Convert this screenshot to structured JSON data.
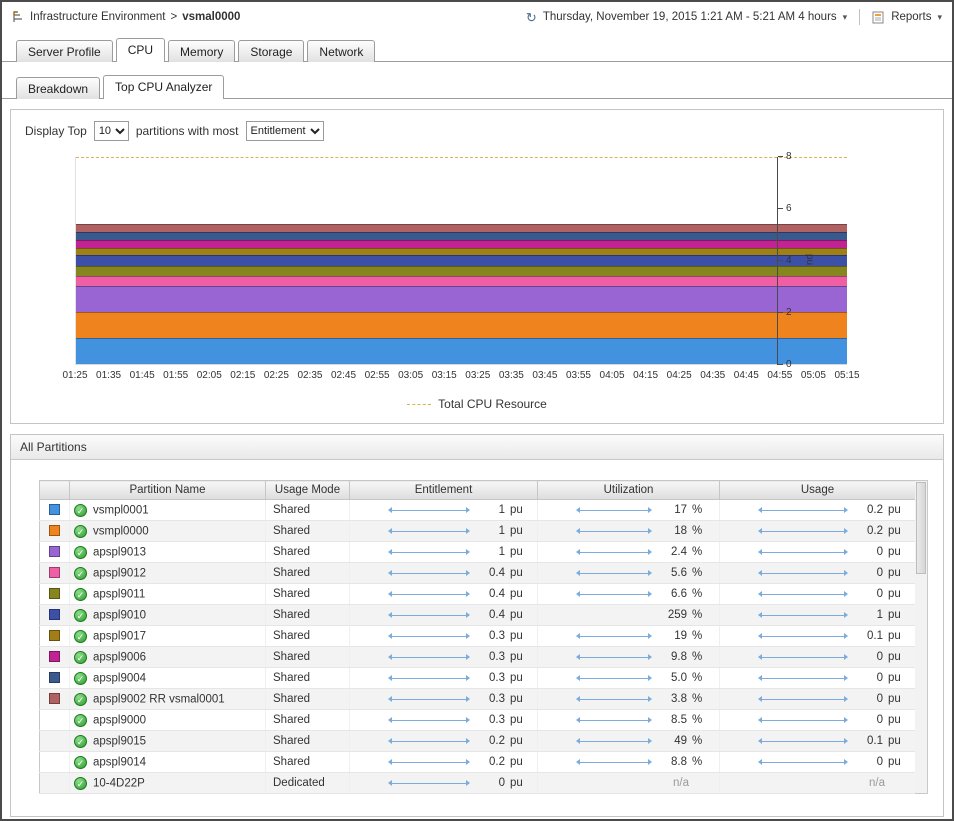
{
  "header": {
    "breadcrumb_root": "Infrastructure Environment",
    "breadcrumb_sep": ">",
    "breadcrumb_current": "vsmal0000",
    "time_range": "Thursday, November 19, 2015 1:21 AM - 5:21 AM 4 hours",
    "reports_label": "Reports"
  },
  "tabs": [
    {
      "label": "Server Profile",
      "active": false
    },
    {
      "label": "CPU",
      "active": true
    },
    {
      "label": "Memory",
      "active": false
    },
    {
      "label": "Storage",
      "active": false
    },
    {
      "label": "Network",
      "active": false
    }
  ],
  "subtabs": [
    {
      "label": "Breakdown",
      "active": false
    },
    {
      "label": "Top CPU Analyzer",
      "active": true
    }
  ],
  "controls": {
    "prefix": "Display Top",
    "top_count": "10",
    "middle": "partitions with most",
    "metric": "Entitlement"
  },
  "chart_data": {
    "type": "area",
    "stacked": true,
    "note": "each series is flat (constant) across the whole time range; values are CPU entitlement in processing units",
    "x": [
      "01:25",
      "01:35",
      "01:45",
      "01:55",
      "02:05",
      "02:15",
      "02:25",
      "02:35",
      "02:45",
      "02:55",
      "03:05",
      "03:15",
      "03:25",
      "03:35",
      "03:45",
      "03:55",
      "04:05",
      "04:15",
      "04:25",
      "04:35",
      "04:45",
      "04:55",
      "05:05",
      "05:15"
    ],
    "series": [
      {
        "name": "vsmpl0001",
        "color": "#4292e0",
        "value": 1
      },
      {
        "name": "vsmpl0000",
        "color": "#ef831d",
        "value": 1
      },
      {
        "name": "apspl9013",
        "color": "#9865d2",
        "value": 1
      },
      {
        "name": "apspl9012",
        "color": "#ee5fa4",
        "value": 0.4
      },
      {
        "name": "apspl9011",
        "color": "#86861e",
        "value": 0.4
      },
      {
        "name": "apspl9010",
        "color": "#3d50a8",
        "value": 0.4
      },
      {
        "name": "apspl9017",
        "color": "#a17f17",
        "value": 0.3
      },
      {
        "name": "apspl9006",
        "color": "#c22394",
        "value": 0.3
      },
      {
        "name": "apspl9004",
        "color": "#3a5a8e",
        "value": 0.3
      },
      {
        "name": "apspl9002 RR vsmal0001",
        "color": "#b06262",
        "value": 0.3
      }
    ],
    "ylabel": "pu",
    "ylim": [
      0,
      8
    ],
    "yticks": [
      0,
      2,
      4,
      6,
      8
    ],
    "grid": false,
    "reference_line": {
      "label": "Total CPU Resource",
      "value": 8,
      "color": "#d9b64a",
      "style": "dashed"
    },
    "legend": [
      {
        "label": "Total CPU Resource",
        "color": "#d9b64a"
      }
    ],
    "legend_position": "bottom-center"
  },
  "partitions": {
    "title": "All Partitions",
    "columns": {
      "name": "Partition Name",
      "mode": "Usage Mode",
      "entitlement": "Entitlement",
      "utilization": "Utilization",
      "usage": "Usage"
    },
    "rows": [
      {
        "swatch": "#4292e0",
        "status": "ok",
        "name": "vsmpl0001",
        "mode": "Shared",
        "entitlement": {
          "spark": true,
          "value": "1",
          "unit": "pu"
        },
        "utilization": {
          "spark": true,
          "value": "17",
          "unit": "%"
        },
        "usage": {
          "spark": true,
          "value": "0.2",
          "unit": "pu"
        }
      },
      {
        "swatch": "#ef831d",
        "status": "ok",
        "name": "vsmpl0000",
        "mode": "Shared",
        "entitlement": {
          "spark": true,
          "value": "1",
          "unit": "pu"
        },
        "utilization": {
          "spark": true,
          "value": "18",
          "unit": "%"
        },
        "usage": {
          "spark": true,
          "value": "0.2",
          "unit": "pu"
        }
      },
      {
        "swatch": "#9865d2",
        "status": "ok",
        "name": "apspl9013",
        "mode": "Shared",
        "entitlement": {
          "spark": true,
          "value": "1",
          "unit": "pu"
        },
        "utilization": {
          "spark": true,
          "value": "2.4",
          "unit": "%"
        },
        "usage": {
          "spark": true,
          "value": "0",
          "unit": "pu"
        }
      },
      {
        "swatch": "#ee5fa4",
        "status": "ok",
        "name": "apspl9012",
        "mode": "Shared",
        "entitlement": {
          "spark": true,
          "value": "0.4",
          "unit": "pu"
        },
        "utilization": {
          "spark": true,
          "value": "5.6",
          "unit": "%"
        },
        "usage": {
          "spark": true,
          "value": "0",
          "unit": "pu"
        }
      },
      {
        "swatch": "#86861e",
        "status": "ok",
        "name": "apspl9011",
        "mode": "Shared",
        "entitlement": {
          "spark": true,
          "value": "0.4",
          "unit": "pu"
        },
        "utilization": {
          "spark": true,
          "value": "6.6",
          "unit": "%"
        },
        "usage": {
          "spark": true,
          "value": "0",
          "unit": "pu"
        }
      },
      {
        "swatch": "#3d50a8",
        "status": "ok",
        "name": "apspl9010",
        "mode": "Shared",
        "entitlement": {
          "spark": true,
          "value": "0.4",
          "unit": "pu"
        },
        "utilization": {
          "spark": false,
          "value": "259",
          "unit": "%"
        },
        "usage": {
          "spark": true,
          "value": "1",
          "unit": "pu"
        }
      },
      {
        "swatch": "#a17f17",
        "status": "ok",
        "name": "apspl9017",
        "mode": "Shared",
        "entitlement": {
          "spark": true,
          "value": "0.3",
          "unit": "pu"
        },
        "utilization": {
          "spark": true,
          "value": "19",
          "unit": "%"
        },
        "usage": {
          "spark": true,
          "value": "0.1",
          "unit": "pu"
        }
      },
      {
        "swatch": "#c22394",
        "status": "ok",
        "name": "apspl9006",
        "mode": "Shared",
        "entitlement": {
          "spark": true,
          "value": "0.3",
          "unit": "pu"
        },
        "utilization": {
          "spark": true,
          "value": "9.8",
          "unit": "%"
        },
        "usage": {
          "spark": true,
          "value": "0",
          "unit": "pu"
        }
      },
      {
        "swatch": "#3a5a8e",
        "status": "ok",
        "name": "apspl9004",
        "mode": "Shared",
        "entitlement": {
          "spark": true,
          "value": "0.3",
          "unit": "pu"
        },
        "utilization": {
          "spark": true,
          "value": "5.0",
          "unit": "%"
        },
        "usage": {
          "spark": true,
          "value": "0",
          "unit": "pu"
        }
      },
      {
        "swatch": "#b06262",
        "status": "ok",
        "name": "apspl9002 RR vsmal0001",
        "mode": "Shared",
        "entitlement": {
          "spark": true,
          "value": "0.3",
          "unit": "pu"
        },
        "utilization": {
          "spark": true,
          "value": "3.8",
          "unit": "%"
        },
        "usage": {
          "spark": true,
          "value": "0",
          "unit": "pu"
        }
      },
      {
        "swatch": null,
        "status": "ok",
        "name": "apspl9000",
        "mode": "Shared",
        "entitlement": {
          "spark": true,
          "value": "0.3",
          "unit": "pu"
        },
        "utilization": {
          "spark": true,
          "value": "8.5",
          "unit": "%"
        },
        "usage": {
          "spark": true,
          "value": "0",
          "unit": "pu"
        }
      },
      {
        "swatch": null,
        "status": "ok",
        "name": "apspl9015",
        "mode": "Shared",
        "entitlement": {
          "spark": true,
          "value": "0.2",
          "unit": "pu"
        },
        "utilization": {
          "spark": true,
          "value": "49",
          "unit": "%"
        },
        "usage": {
          "spark": true,
          "value": "0.1",
          "unit": "pu"
        }
      },
      {
        "swatch": null,
        "status": "ok",
        "name": "apspl9014",
        "mode": "Shared",
        "entitlement": {
          "spark": true,
          "value": "0.2",
          "unit": "pu"
        },
        "utilization": {
          "spark": true,
          "value": "8.8",
          "unit": "%"
        },
        "usage": {
          "spark": true,
          "value": "0",
          "unit": "pu"
        }
      },
      {
        "swatch": null,
        "status": "ok",
        "name": "10-4D22P",
        "mode": "Dedicated",
        "entitlement": {
          "spark": true,
          "value": "0",
          "unit": "pu"
        },
        "utilization": {
          "spark": false,
          "value": "n/a",
          "unit": ""
        },
        "usage": {
          "spark": false,
          "value": "n/a",
          "unit": ""
        }
      }
    ]
  }
}
